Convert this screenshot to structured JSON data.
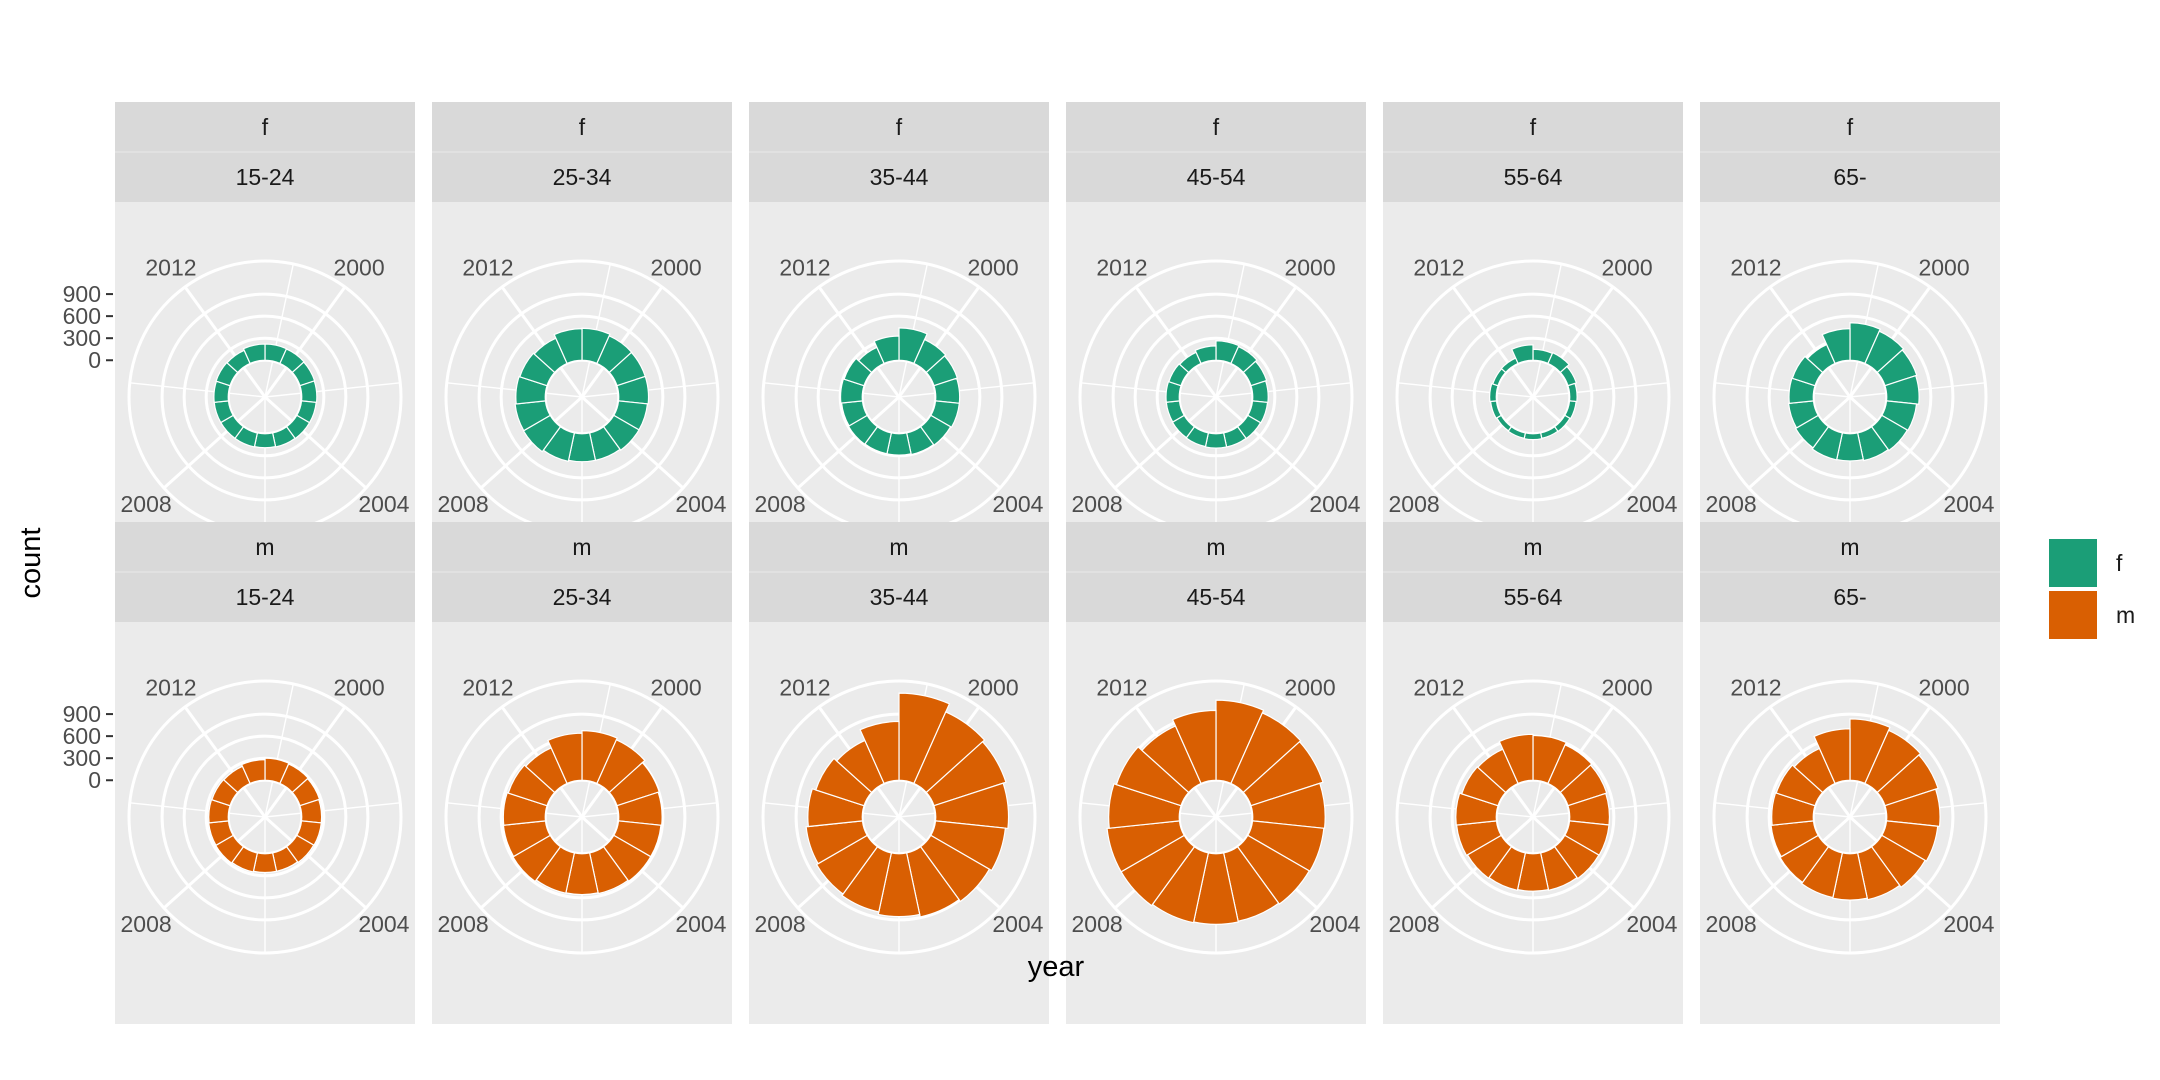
{
  "chart_data": {
    "type": "bar",
    "coord": "polar",
    "facet_rows": [
      "f",
      "m"
    ],
    "facet_cols": [
      "15-24",
      "25-34",
      "35-44",
      "45-54",
      "55-64",
      "65-"
    ],
    "years": [
      1999,
      2000,
      2001,
      2002,
      2003,
      2004,
      2005,
      2006,
      2007,
      2008,
      2009,
      2010,
      2011,
      2012,
      2013
    ],
    "year_tick_labels": [
      "2000",
      "2004",
      "2008",
      "2012"
    ],
    "count_ticks": [
      0,
      300,
      600,
      900
    ],
    "count_tick_labels": [
      "0",
      "300",
      "600",
      "900"
    ],
    "ylim": [
      -500,
      1350
    ],
    "xlabel": "year",
    "ylabel": "count",
    "legend": {
      "position": "right",
      "entries": [
        {
          "key": "f",
          "label": "f",
          "color": "#1B9E77"
        },
        {
          "key": "m",
          "label": "m",
          "color": "#D95F02"
        }
      ]
    },
    "series": [
      {
        "name": "f",
        "row": "f",
        "col": "15-24",
        "values": [
          220,
          215,
          210,
          205,
          200,
          200,
          195,
          190,
          195,
          195,
          195,
          195,
          200,
          195,
          220
        ]
      },
      {
        "name": "f",
        "row": "f",
        "col": "25-34",
        "values": [
          435,
          410,
          405,
          405,
          395,
          395,
          380,
          380,
          395,
          420,
          415,
          400,
          390,
          375,
          430
        ]
      },
      {
        "name": "f",
        "row": "f",
        "col": "35-44",
        "values": [
          440,
          355,
          335,
          325,
          325,
          310,
          300,
          290,
          290,
          295,
          285,
          295,
          285,
          240,
          330
        ]
      },
      {
        "name": "f",
        "row": "f",
        "col": "45-54",
        "values": [
          265,
          250,
          225,
          210,
          205,
          200,
          195,
          195,
          190,
          185,
          180,
          180,
          175,
          165,
          195
        ]
      },
      {
        "name": "f",
        "row": "f",
        "col": "55-64",
        "values": [
          150,
          160,
          120,
          100,
          90,
          80,
          75,
          80,
          75,
          70,
          80,
          90,
          75,
          80,
          210
        ]
      },
      {
        "name": "f",
        "row": "f",
        "col": "65-",
        "values": [
          510,
          480,
          455,
          440,
          410,
          400,
          385,
          370,
          375,
          355,
          340,
          330,
          325,
          280,
          430
        ]
      },
      {
        "name": "m",
        "row": "m",
        "col": "15-24",
        "values": [
          300,
          290,
          280,
          270,
          270,
          265,
          255,
          255,
          265,
          275,
          270,
          265,
          260,
          255,
          280
        ]
      },
      {
        "name": "m",
        "row": "m",
        "col": "25-34",
        "values": [
          675,
          650,
          605,
          590,
          580,
          580,
          565,
          555,
          560,
          585,
          575,
          570,
          555,
          530,
          640
        ]
      },
      {
        "name": "m",
        "row": "m",
        "col": "35-44",
        "values": [
          1185,
          1065,
          1030,
          990,
          955,
          920,
          890,
          855,
          820,
          795,
          770,
          740,
          690,
          640,
          800
        ]
      },
      {
        "name": "m",
        "row": "m",
        "col": "45-54",
        "values": [
          1090,
          1050,
          1030,
          985,
          975,
          965,
          950,
          960,
          970,
          990,
          990,
          960,
          925,
          855,
          950
        ]
      },
      {
        "name": "m",
        "row": "m",
        "col": "55-64",
        "values": [
          610,
          575,
          555,
          540,
          540,
          535,
          520,
          510,
          520,
          530,
          545,
          550,
          520,
          510,
          625
        ]
      },
      {
        "name": "m",
        "row": "m",
        "col": "65-",
        "values": [
          835,
          790,
          760,
          725,
          700,
          680,
          650,
          630,
          620,
          600,
          580,
          565,
          555,
          520,
          700
        ]
      }
    ]
  }
}
